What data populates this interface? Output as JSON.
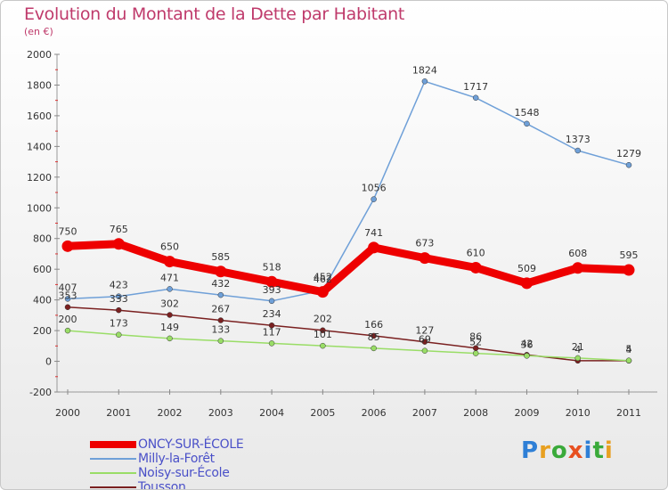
{
  "title": "Evolution du Montant de la Dette par Habitant",
  "subtitle": "(en €)",
  "logo": "Proxiti",
  "chart_data": {
    "type": "line",
    "x": [
      "2000",
      "2001",
      "2002",
      "2003",
      "2004",
      "2005",
      "2006",
      "2007",
      "2008",
      "2009",
      "2010",
      "2011"
    ],
    "ylim": [
      -200,
      2000
    ],
    "yticks": [
      -200,
      0,
      200,
      400,
      600,
      800,
      1000,
      1200,
      1400,
      1600,
      1800,
      2000
    ],
    "grid": false,
    "legend": "bottom-left",
    "series": [
      {
        "name": "ONCY-SUR-ÉCOLE",
        "color": "#ee0000",
        "width": 9,
        "values": [
          750,
          765,
          650,
          585,
          518,
          452,
          741,
          673,
          610,
          509,
          608,
          595
        ]
      },
      {
        "name": "Milly-la-Forêt",
        "color": "#6fa0d8",
        "width": 1.5,
        "values": [
          407,
          423,
          471,
          432,
          393,
          462,
          1056,
          1824,
          1717,
          1548,
          1373,
          1279
        ]
      },
      {
        "name": "Noisy-sur-École",
        "color": "#99dd66",
        "width": 1.5,
        "values": [
          200,
          173,
          149,
          133,
          117,
          101,
          85,
          69,
          52,
          36,
          21,
          5
        ]
      },
      {
        "name": "Tousson",
        "color": "#7a2020",
        "width": 1.5,
        "values": [
          353,
          333,
          302,
          267,
          234,
          202,
          166,
          127,
          86,
          42,
          4,
          4
        ]
      }
    ]
  }
}
